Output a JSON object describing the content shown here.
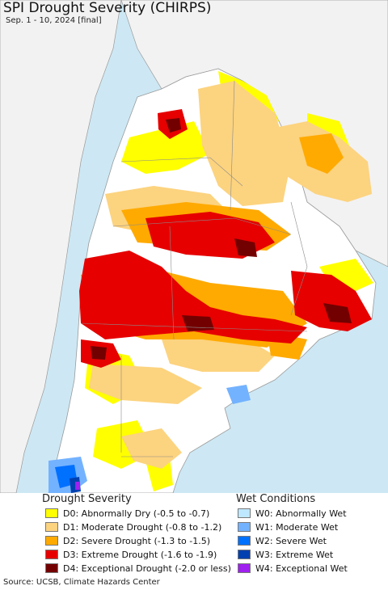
{
  "title": "SPI Drought Severity (CHIRPS)",
  "subtitle": "Sep. 1 - 10, 2024 [final]",
  "colors": {
    "ocean": "#cde8f4",
    "land": "#ffffff",
    "neighbor_land": "#f2f2f2",
    "border": "#9a9a9a"
  },
  "legend": {
    "drought_heading": "Drought Severity",
    "drought_items": [
      {
        "label": "D0: Abnormally Dry (-0.5 to -0.7)",
        "color": "#ffff00"
      },
      {
        "label": "D1: Moderate Drought (-0.8 to -1.2)",
        "color": "#fcd37f"
      },
      {
        "label": "D2: Severe Drought (-1.3 to -1.5)",
        "color": "#ffaa00"
      },
      {
        "label": "D3: Extreme Drought (-1.6 to -1.9)",
        "color": "#e60000"
      },
      {
        "label": "D4: Exceptional Drought (-2.0 or less)",
        "color": "#730000"
      }
    ],
    "wet_heading": "Wet Conditions",
    "wet_items": [
      {
        "label": "W0: Abnormally Wet",
        "color": "#bee8ff"
      },
      {
        "label": "W1: Moderate Wet",
        "color": "#73b2ff"
      },
      {
        "label": "W2: Severe Wet",
        "color": "#0070ff"
      },
      {
        "label": "W3: Extreme Wet",
        "color": "#0040b0"
      },
      {
        "label": "W4: Exceptional Wet",
        "color": "#a020f0"
      }
    ]
  },
  "footer": "Source: UCSB, Climate Hazards Center"
}
